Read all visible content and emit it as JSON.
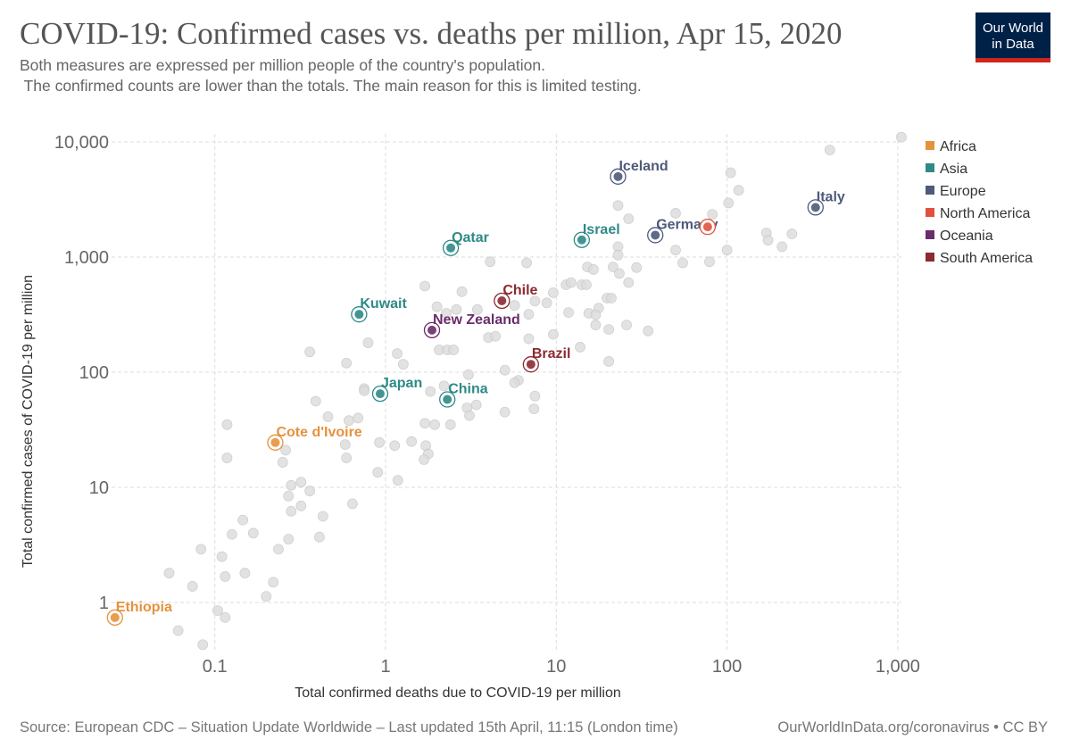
{
  "header": {
    "title": "COVID-19: Confirmed cases vs. deaths per million, Apr 15, 2020",
    "subtitle_1": "Both measures are expressed per million people of the country's population.",
    "subtitle_2": " The confirmed counts are lower than the totals. The main reason for this is limited testing.",
    "logo_line1": "Our World",
    "logo_line2": "in Data"
  },
  "footer": {
    "source": "Source: European CDC – Situation Update Worldwide – Last updated 15th April, 11:15 (London time)",
    "credit": "OurWorldInData.org/coronavirus • CC BY"
  },
  "chart_data": {
    "type": "scatter",
    "xlabel": "Total confirmed deaths due to COVID-19 per million",
    "ylabel": "Total confirmed cases of COVID-19 per million",
    "xscale": "log",
    "yscale": "log",
    "xlim": [
      0.025,
      1100
    ],
    "ylim": [
      0.4,
      12000
    ],
    "xticks": [
      {
        "v": 0.1,
        "label": "0.1"
      },
      {
        "v": 1,
        "label": "1"
      },
      {
        "v": 10,
        "label": "10"
      },
      {
        "v": 100,
        "label": "100"
      },
      {
        "v": 1000,
        "label": "1,000"
      }
    ],
    "yticks": [
      {
        "v": 1,
        "label": "1"
      },
      {
        "v": 10,
        "label": "10"
      },
      {
        "v": 100,
        "label": "100"
      },
      {
        "v": 1000,
        "label": "1,000"
      },
      {
        "v": 10000,
        "label": "10,000"
      }
    ],
    "grid": true,
    "legend_position": "right",
    "legend": [
      {
        "name": "Africa",
        "color": "#e5923d"
      },
      {
        "name": "Asia",
        "color": "#2e8a86"
      },
      {
        "name": "Europe",
        "color": "#4e5a7a"
      },
      {
        "name": "North America",
        "color": "#e0523f"
      },
      {
        "name": "Oceania",
        "color": "#6a2c6a"
      },
      {
        "name": "South America",
        "color": "#8b2a32"
      }
    ],
    "background_color": "#dddddd",
    "highlighted": [
      {
        "label": "Ethiopia",
        "continent": "Africa",
        "x": 0.026,
        "y": 0.74
      },
      {
        "label": "Cote d'Ivoire",
        "continent": "Africa",
        "x": 0.226,
        "y": 24.5
      },
      {
        "label": "Japan",
        "continent": "Asia",
        "x": 0.93,
        "y": 65
      },
      {
        "label": "Kuwait",
        "continent": "Asia",
        "x": 0.7,
        "y": 318
      },
      {
        "label": "New Zealand",
        "continent": "Oceania",
        "x": 1.87,
        "y": 232
      },
      {
        "label": "Qatar",
        "continent": "Asia",
        "x": 2.41,
        "y": 1200
      },
      {
        "label": "China",
        "continent": "Asia",
        "x": 2.3,
        "y": 58
      },
      {
        "label": "Chile",
        "continent": "South America",
        "x": 4.8,
        "y": 417
      },
      {
        "label": "Brazil",
        "continent": "South America",
        "x": 7.1,
        "y": 117
      },
      {
        "label": "Israel",
        "continent": "Asia",
        "x": 14.1,
        "y": 1410
      },
      {
        "label": "Iceland",
        "continent": "Europe",
        "x": 23,
        "y": 5000
      },
      {
        "label": "Germany",
        "continent": "Europe",
        "x": 38,
        "y": 1550
      },
      {
        "label": "Italy",
        "continent": "Europe",
        "x": 330,
        "y": 2700
      },
      {
        "label": "",
        "continent": "North America",
        "x": 77,
        "y": 1830
      }
    ],
    "other_points": [
      [
        1.7,
        560
      ],
      [
        2.0,
        370
      ],
      [
        0.79,
        180
      ],
      [
        0.36,
        150
      ],
      [
        0.59,
        120
      ],
      [
        1.17,
        145
      ],
      [
        1.27,
        117
      ],
      [
        0.75,
        72
      ],
      [
        0.75,
        69
      ],
      [
        1.83,
        68
      ],
      [
        0.39,
        56
      ],
      [
        0.118,
        35
      ],
      [
        0.46,
        41
      ],
      [
        0.61,
        38
      ],
      [
        0.69,
        40
      ],
      [
        1.7,
        36
      ],
      [
        1.94,
        35
      ],
      [
        0.26,
        21
      ],
      [
        0.58,
        23.5
      ],
      [
        0.92,
        24.5
      ],
      [
        1.13,
        23
      ],
      [
        1.42,
        25
      ],
      [
        1.72,
        23
      ],
      [
        1.78,
        19.5
      ],
      [
        1.68,
        17.4
      ],
      [
        0.118,
        18
      ],
      [
        0.25,
        16.5
      ],
      [
        0.59,
        18
      ],
      [
        0.9,
        13.5
      ],
      [
        1.18,
        11.5
      ],
      [
        0.28,
        10.4
      ],
      [
        0.32,
        11.1
      ],
      [
        0.36,
        9.3
      ],
      [
        0.27,
        8.4
      ],
      [
        0.32,
        6.9
      ],
      [
        0.28,
        6.2
      ],
      [
        0.64,
        7.2
      ],
      [
        0.43,
        5.6
      ],
      [
        0.146,
        5.2
      ],
      [
        0.168,
        4.0
      ],
      [
        0.126,
        3.9
      ],
      [
        0.27,
        3.55
      ],
      [
        0.41,
        3.7
      ],
      [
        0.236,
        2.9
      ],
      [
        0.083,
        2.9
      ],
      [
        0.11,
        2.5
      ],
      [
        0.054,
        1.8
      ],
      [
        0.15,
        1.8
      ],
      [
        0.115,
        1.68
      ],
      [
        0.074,
        1.38
      ],
      [
        0.22,
        1.5
      ],
      [
        0.2,
        1.13
      ],
      [
        0.104,
        0.85
      ],
      [
        0.115,
        0.74
      ],
      [
        0.061,
        0.57
      ],
      [
        0.085,
        0.43
      ],
      [
        1050,
        11000
      ],
      [
        400,
        8500
      ],
      [
        105,
        5400
      ],
      [
        117,
        3800
      ],
      [
        102,
        2950
      ],
      [
        23,
        2800
      ],
      [
        26.5,
        2150
      ],
      [
        50,
        2400
      ],
      [
        82,
        2350
      ],
      [
        170,
        1620
      ],
      [
        174,
        1400
      ],
      [
        240,
        1590
      ],
      [
        210,
        1230
      ],
      [
        23,
        1230
      ],
      [
        23,
        1040
      ],
      [
        50,
        1150
      ],
      [
        100,
        1150
      ],
      [
        55,
        890
      ],
      [
        79,
        910
      ],
      [
        4.1,
        910
      ],
      [
        6.7,
        890
      ],
      [
        15.2,
        820
      ],
      [
        16.5,
        780
      ],
      [
        21.5,
        820
      ],
      [
        23.4,
        720
      ],
      [
        29.5,
        810
      ],
      [
        26.5,
        600
      ],
      [
        11.4,
        575
      ],
      [
        12.2,
        600
      ],
      [
        14.1,
        575
      ],
      [
        15,
        575
      ],
      [
        2.8,
        500
      ],
      [
        9.6,
        490
      ],
      [
        8.8,
        400
      ],
      [
        7.5,
        415
      ],
      [
        5.7,
        380
      ],
      [
        2.6,
        350
      ],
      [
        3.45,
        350
      ],
      [
        2.27,
        325
      ],
      [
        6.9,
        318
      ],
      [
        19.8,
        440
      ],
      [
        21,
        440
      ],
      [
        11.8,
        330
      ],
      [
        17.7,
        360
      ],
      [
        15.5,
        325
      ],
      [
        17,
        315
      ],
      [
        17,
        257
      ],
      [
        20.3,
        235
      ],
      [
        25.8,
        257
      ],
      [
        34.5,
        228
      ],
      [
        4.0,
        200
      ],
      [
        4.4,
        205
      ],
      [
        6.9,
        195
      ],
      [
        9.6,
        213
      ],
      [
        2.06,
        156
      ],
      [
        2.3,
        156
      ],
      [
        2.5,
        156
      ],
      [
        13.8,
        165
      ],
      [
        20.3,
        124
      ],
      [
        5.0,
        104
      ],
      [
        3.06,
        95
      ],
      [
        6.0,
        85
      ],
      [
        5.7,
        81
      ],
      [
        7.5,
        62
      ],
      [
        7.4,
        48
      ],
      [
        5.0,
        45
      ],
      [
        3.0,
        49
      ],
      [
        3.4,
        52
      ],
      [
        3.1,
        42
      ],
      [
        2.4,
        35
      ],
      [
        2.2,
        76
      ]
    ]
  }
}
